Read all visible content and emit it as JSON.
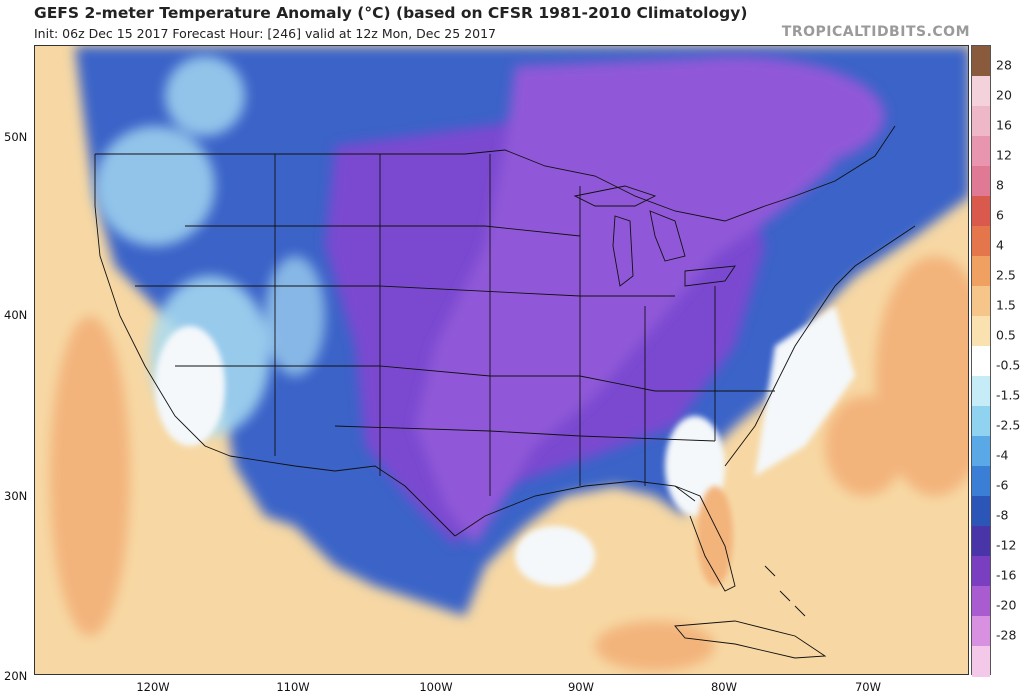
{
  "header": {
    "title": "GEFS 2-meter Temperature Anomaly (°C) (based on CFSR 1981-2010 Climatology)",
    "subtitle": "Init: 06z Dec 15 2017   Forecast Hour: [246]   valid at 12z Mon, Dec 25 2017",
    "watermark": "TROPICALTIDBITS.COM"
  },
  "axes": {
    "lat_labels": [
      "50N",
      "40N",
      "30N",
      "20N"
    ],
    "lon_labels": [
      "120W",
      "110W",
      "100W",
      "90W",
      "80W",
      "70W"
    ]
  },
  "colorbar": {
    "labels": [
      "28",
      "20",
      "16",
      "12",
      "8",
      "6",
      "4",
      "2.5",
      "1.5",
      "0.5",
      "-0.5",
      "-1.5",
      "-2.5",
      "-4",
      "-6",
      "-8",
      "-12",
      "-16",
      "-20",
      "-28"
    ],
    "colors": [
      "#8a5a3c",
      "#f4d2dc",
      "#eeb8c8",
      "#e896b0",
      "#e07a94",
      "#d95a4c",
      "#e5754a",
      "#f0a060",
      "#f5c58a",
      "#f9e2b0",
      "#ffffff",
      "#c5ecf7",
      "#8fd3f0",
      "#5aa8e6",
      "#3a7ed6",
      "#2c55b8",
      "#4a35a8",
      "#7a3ec0",
      "#a85ccf",
      "#d890e0",
      "#f4c8e8"
    ]
  },
  "map_colors": {
    "ocean_warm": "#f7d8a4",
    "ocean_warmer": "#f3b47c",
    "land_cold": "#3a64c8",
    "land_colder": "#7a4ad0",
    "land_coldest": "#9058d8",
    "white_zero": "#f4f8fb",
    "cyan_mild": "#a8dcf2"
  }
}
